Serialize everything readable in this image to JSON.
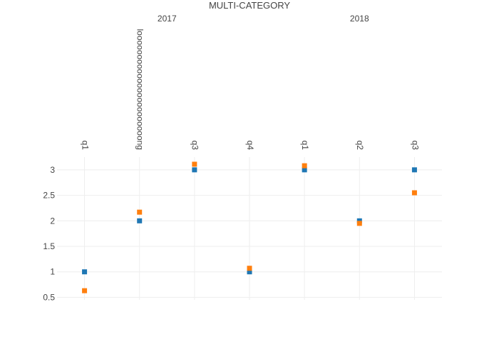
{
  "chart_data": {
    "type": "scatter",
    "title": "MULTI-CATEGORY",
    "xlabel": "",
    "ylabel": "",
    "x_categories": [
      {
        "group": "2017",
        "label": "q1"
      },
      {
        "group": "2017",
        "label": "looooooooooooooooooooooong"
      },
      {
        "group": "2017",
        "label": "q3"
      },
      {
        "group": "2017",
        "label": "q4"
      },
      {
        "group": "2018",
        "label": "q1"
      },
      {
        "group": "2018",
        "label": "q2"
      },
      {
        "group": "2018",
        "label": "q3"
      }
    ],
    "groups": [
      "2017",
      "2018"
    ],
    "x_axis_side": "top",
    "ylim": [
      0.45,
      3.25
    ],
    "y_ticks": [
      0.5,
      1,
      1.5,
      2,
      2.5,
      3
    ],
    "y_tick_labels": [
      "0.5",
      "1",
      "1.5",
      "2",
      "2.5",
      "3"
    ],
    "grid": true,
    "legend": "none",
    "series": [
      {
        "color": "#1f77b4",
        "marker": "square",
        "values": [
          1,
          2,
          3,
          1,
          3,
          2,
          3
        ]
      },
      {
        "color": "#ff7f0e",
        "marker": "square",
        "values": [
          0.63,
          2.17,
          3.11,
          1.07,
          3.08,
          1.95,
          2.55
        ]
      }
    ]
  }
}
